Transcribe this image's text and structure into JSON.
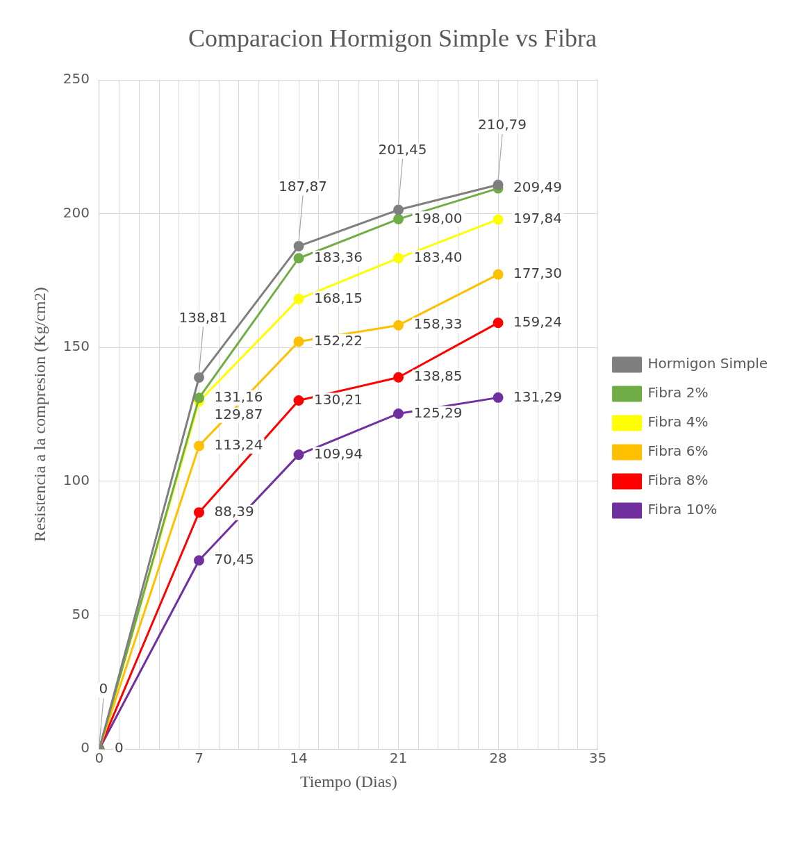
{
  "chart_data": {
    "type": "line",
    "title": "Comparacion Hormigon Simple vs Fibra",
    "xlabel": "Tiempo (Dias)",
    "ylabel": "Resistencia a la compresion (Kg/cm2)",
    "x": [
      0,
      7,
      14,
      21,
      28
    ],
    "xlim": [
      0,
      35
    ],
    "xticks": [
      0,
      {
        "value": 1.4,
        "label": null
      },
      {
        "value": 2.8,
        "label": null
      },
      {
        "value": 4.2,
        "label": null
      },
      {
        "value": 5.6,
        "label": null
      },
      7,
      {
        "value": 8.4,
        "label": null
      },
      {
        "value": 9.8,
        "label": null
      },
      {
        "value": 11.2,
        "label": null
      },
      {
        "value": 12.6,
        "label": null
      },
      14,
      {
        "value": 15.4,
        "label": null
      },
      {
        "value": 16.8,
        "label": null
      },
      {
        "value": 18.2,
        "label": null
      },
      {
        "value": 19.6,
        "label": null
      },
      21,
      {
        "value": 22.4,
        "label": null
      },
      {
        "value": 23.8,
        "label": null
      },
      {
        "value": 25.2,
        "label": null
      },
      {
        "value": 26.6,
        "label": null
      },
      28,
      {
        "value": 29.4,
        "label": null
      },
      {
        "value": 30.8,
        "label": null
      },
      {
        "value": 32.2,
        "label": null
      },
      {
        "value": 33.6,
        "label": null
      },
      35
    ],
    "ylim": [
      0,
      250
    ],
    "yticks": [
      0,
      50,
      100,
      150,
      200,
      250
    ],
    "grid": true,
    "legend": "right",
    "marker": "circle",
    "line_style": "solid",
    "series": [
      {
        "name": "Hormigon Simple",
        "color": "#7f7f7f",
        "values": [
          0,
          138.81,
          187.87,
          201.45,
          210.79
        ],
        "value_labels": [
          "0",
          "138,81",
          "187,87",
          "201,45",
          "210,79"
        ]
      },
      {
        "name": "Fibra 2%",
        "color": "#70ad47",
        "values": [
          0,
          131.16,
          183.36,
          198.0,
          209.49
        ],
        "value_labels": [
          null,
          "131,16",
          "183,36",
          "198,00",
          "209,49"
        ]
      },
      {
        "name": "Fibra 4%",
        "color": "#ffff00",
        "values": [
          0,
          129.87,
          168.15,
          183.4,
          197.84
        ],
        "value_labels": [
          null,
          "129,87",
          "168,15",
          "183,40",
          "197,84"
        ]
      },
      {
        "name": "Fibra 6%",
        "color": "#ffc000",
        "values": [
          0,
          113.24,
          152.22,
          158.33,
          177.3
        ],
        "value_labels": [
          null,
          "113,24",
          "152,22",
          "158,33",
          "177,30"
        ]
      },
      {
        "name": "Fibra 8%",
        "color": "#ff0000",
        "values": [
          0,
          88.39,
          130.21,
          138.85,
          159.24
        ],
        "value_labels": [
          null,
          "88,39",
          "130,21",
          "138,85",
          "159,24"
        ]
      },
      {
        "name": "Fibra 10%",
        "color": "#7030a0",
        "values": [
          0,
          70.45,
          109.94,
          125.29,
          131.29
        ],
        "value_labels": [
          "0",
          "70,45",
          "109,94",
          "125,29",
          "131,29"
        ]
      }
    ]
  }
}
